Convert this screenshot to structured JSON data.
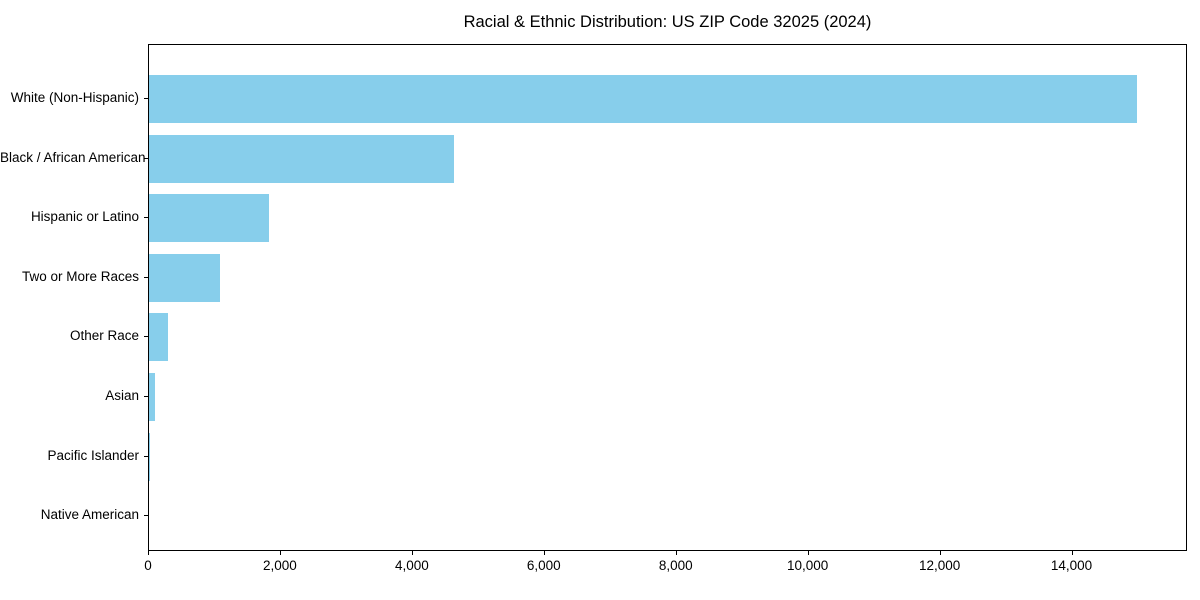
{
  "title": "Racial & Ethnic Distribution: US ZIP Code 32025 (2024)",
  "chart_data": {
    "type": "bar",
    "orientation": "horizontal",
    "title": "Racial & Ethnic Distribution: US ZIP Code 32025 (2024)",
    "categories": [
      "White (Non-Hispanic)",
      "Black / African American",
      "Hispanic or Latino",
      "Two or More Races",
      "Other Race",
      "Asian",
      "Pacific Islander",
      "Native American"
    ],
    "values": [
      15000,
      4635,
      1830,
      1080,
      293,
      90,
      15,
      0
    ],
    "xlabel": "",
    "ylabel": "",
    "xlim": [
      0,
      15750
    ],
    "x_ticks": [
      0,
      2000,
      4000,
      6000,
      8000,
      10000,
      12000,
      14000
    ],
    "x_tick_labels": [
      "0",
      "2,000",
      "4,000",
      "6,000",
      "8,000",
      "10,000",
      "12,000",
      "14,000"
    ],
    "bar_color": "#87CEEB",
    "text_color": "#000000",
    "grid": false,
    "legend": false,
    "background": "#ffffff"
  }
}
